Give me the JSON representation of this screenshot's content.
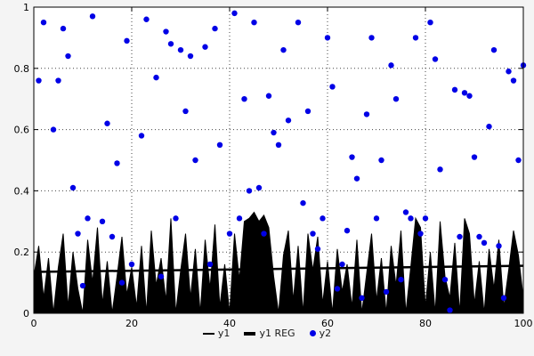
{
  "chart": {
    "background": "#f4f4f4",
    "plot_background": "#ffffff",
    "grid_color": "#444444",
    "axis_color": "#000000",
    "tick_label_color": "#000000",
    "legend": [
      {
        "label": "y1",
        "swatch": "line",
        "color": "#000000"
      },
      {
        "label": "y1 REG",
        "swatch": "thick-line",
        "color": "#000000"
      },
      {
        "label": "y2",
        "swatch": "dot",
        "color": "#0000e6"
      }
    ]
  },
  "chart_data": {
    "type": "mixed",
    "title": "",
    "xlabel": "",
    "ylabel": "",
    "xlim": [
      0,
      100
    ],
    "ylim": [
      0,
      1
    ],
    "x_ticks": [
      0,
      20,
      40,
      60,
      80,
      100
    ],
    "y_ticks": [
      0,
      0.2,
      0.4,
      0.6,
      0.8,
      1
    ],
    "grid": true,
    "grid_style": "dotted",
    "legend_position": "bottom",
    "series": [
      {
        "name": "y1",
        "type": "area",
        "color": "#000000",
        "x_start": 0,
        "x_end": 100,
        "y": [
          0.12,
          0.22,
          0.05,
          0.18,
          0.0,
          0.15,
          0.26,
          0.02,
          0.2,
          0.08,
          0.0,
          0.24,
          0.1,
          0.28,
          0.03,
          0.17,
          0.0,
          0.12,
          0.25,
          0.06,
          0.15,
          0.02,
          0.22,
          0.0,
          0.27,
          0.09,
          0.18,
          0.04,
          0.31,
          0.0,
          0.14,
          0.26,
          0.05,
          0.21,
          0.0,
          0.24,
          0.08,
          0.29,
          0.02,
          0.16,
          0.0,
          0.26,
          0.11,
          0.3,
          0.31,
          0.33,
          0.3,
          0.32,
          0.28,
          0.12,
          0.0,
          0.19,
          0.27,
          0.04,
          0.22,
          0.0,
          0.26,
          0.14,
          0.25,
          0.03,
          0.17,
          0.0,
          0.21,
          0.07,
          0.16,
          0.02,
          0.24,
          0.0,
          0.13,
          0.26,
          0.04,
          0.18,
          0.0,
          0.22,
          0.09,
          0.27,
          0.0,
          0.15,
          0.31,
          0.28,
          0.02,
          0.2,
          0.0,
          0.3,
          0.12,
          0.05,
          0.23,
          0.0,
          0.31,
          0.26,
          0.03,
          0.17,
          0.0,
          0.21,
          0.08,
          0.24,
          0.02,
          0.14,
          0.27,
          0.19,
          0.05
        ]
      },
      {
        "name": "y1 REG",
        "type": "line",
        "color": "#000000",
        "width": 2.5,
        "x": [
          0,
          100
        ],
        "y": [
          0.135,
          0.155
        ]
      },
      {
        "name": "y2",
        "type": "scatter",
        "color": "#0000e6",
        "marker_radius": 3.2,
        "points": [
          [
            1,
            0.76
          ],
          [
            2,
            0.95
          ],
          [
            4,
            0.6
          ],
          [
            5,
            0.76
          ],
          [
            6,
            0.93
          ],
          [
            7,
            0.84
          ],
          [
            8,
            0.41
          ],
          [
            9,
            0.26
          ],
          [
            10,
            0.09
          ],
          [
            11,
            0.31
          ],
          [
            12,
            0.97
          ],
          [
            14,
            0.3
          ],
          [
            15,
            0.62
          ],
          [
            16,
            0.25
          ],
          [
            17,
            0.49
          ],
          [
            18,
            0.1
          ],
          [
            19,
            0.89
          ],
          [
            20,
            0.16
          ],
          [
            22,
            0.58
          ],
          [
            23,
            0.96
          ],
          [
            25,
            0.77
          ],
          [
            26,
            0.12
          ],
          [
            27,
            0.92
          ],
          [
            28,
            0.88
          ],
          [
            29,
            0.31
          ],
          [
            30,
            0.86
          ],
          [
            31,
            0.66
          ],
          [
            32,
            0.84
          ],
          [
            33,
            0.5
          ],
          [
            35,
            0.87
          ],
          [
            36,
            0.16
          ],
          [
            37,
            0.93
          ],
          [
            38,
            0.55
          ],
          [
            40,
            0.26
          ],
          [
            41,
            0.98
          ],
          [
            42,
            0.31
          ],
          [
            43,
            0.7
          ],
          [
            44,
            0.4
          ],
          [
            45,
            0.95
          ],
          [
            46,
            0.41
          ],
          [
            47,
            0.26
          ],
          [
            48,
            0.71
          ],
          [
            49,
            0.59
          ],
          [
            50,
            0.55
          ],
          [
            51,
            0.86
          ],
          [
            52,
            0.63
          ],
          [
            54,
            0.95
          ],
          [
            55,
            0.36
          ],
          [
            56,
            0.66
          ],
          [
            57,
            0.26
          ],
          [
            58,
            0.21
          ],
          [
            59,
            0.31
          ],
          [
            60,
            0.9
          ],
          [
            61,
            0.74
          ],
          [
            62,
            0.08
          ],
          [
            63,
            0.16
          ],
          [
            64,
            0.27
          ],
          [
            65,
            0.51
          ],
          [
            66,
            0.44
          ],
          [
            67,
            0.05
          ],
          [
            68,
            0.65
          ],
          [
            69,
            0.9
          ],
          [
            70,
            0.31
          ],
          [
            71,
            0.5
          ],
          [
            72,
            0.07
          ],
          [
            73,
            0.81
          ],
          [
            74,
            0.7
          ],
          [
            75,
            0.11
          ],
          [
            76,
            0.33
          ],
          [
            77,
            0.31
          ],
          [
            78,
            0.9
          ],
          [
            79,
            0.26
          ],
          [
            80,
            0.31
          ],
          [
            81,
            0.95
          ],
          [
            82,
            0.83
          ],
          [
            83,
            0.47
          ],
          [
            84,
            0.11
          ],
          [
            85,
            0.01
          ],
          [
            86,
            0.73
          ],
          [
            87,
            0.25
          ],
          [
            88,
            0.72
          ],
          [
            89,
            0.71
          ],
          [
            90,
            0.51
          ],
          [
            91,
            0.25
          ],
          [
            92,
            0.23
          ],
          [
            93,
            0.61
          ],
          [
            94,
            0.86
          ],
          [
            95,
            0.22
          ],
          [
            96,
            0.05
          ],
          [
            97,
            0.79
          ],
          [
            98,
            0.76
          ],
          [
            99,
            0.5
          ],
          [
            100,
            0.81
          ]
        ]
      }
    ]
  }
}
